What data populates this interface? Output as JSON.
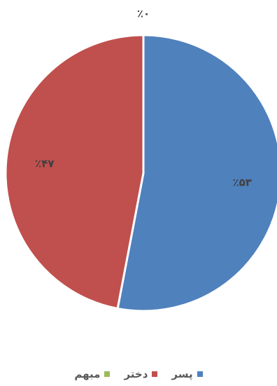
{
  "chart_data": {
    "type": "pie",
    "title": "",
    "categories": [
      "پسر",
      "دختر",
      "مبهم"
    ],
    "values": [
      53,
      47,
      0
    ],
    "data_labels": [
      "٪۵۳",
      "٪۴۷",
      "٪۰"
    ],
    "colors": [
      "#4f81bd",
      "#c0504d",
      "#9bbb59"
    ],
    "legend_position": "bottom",
    "start_angle": "top (12 o'clock), clockwise"
  }
}
